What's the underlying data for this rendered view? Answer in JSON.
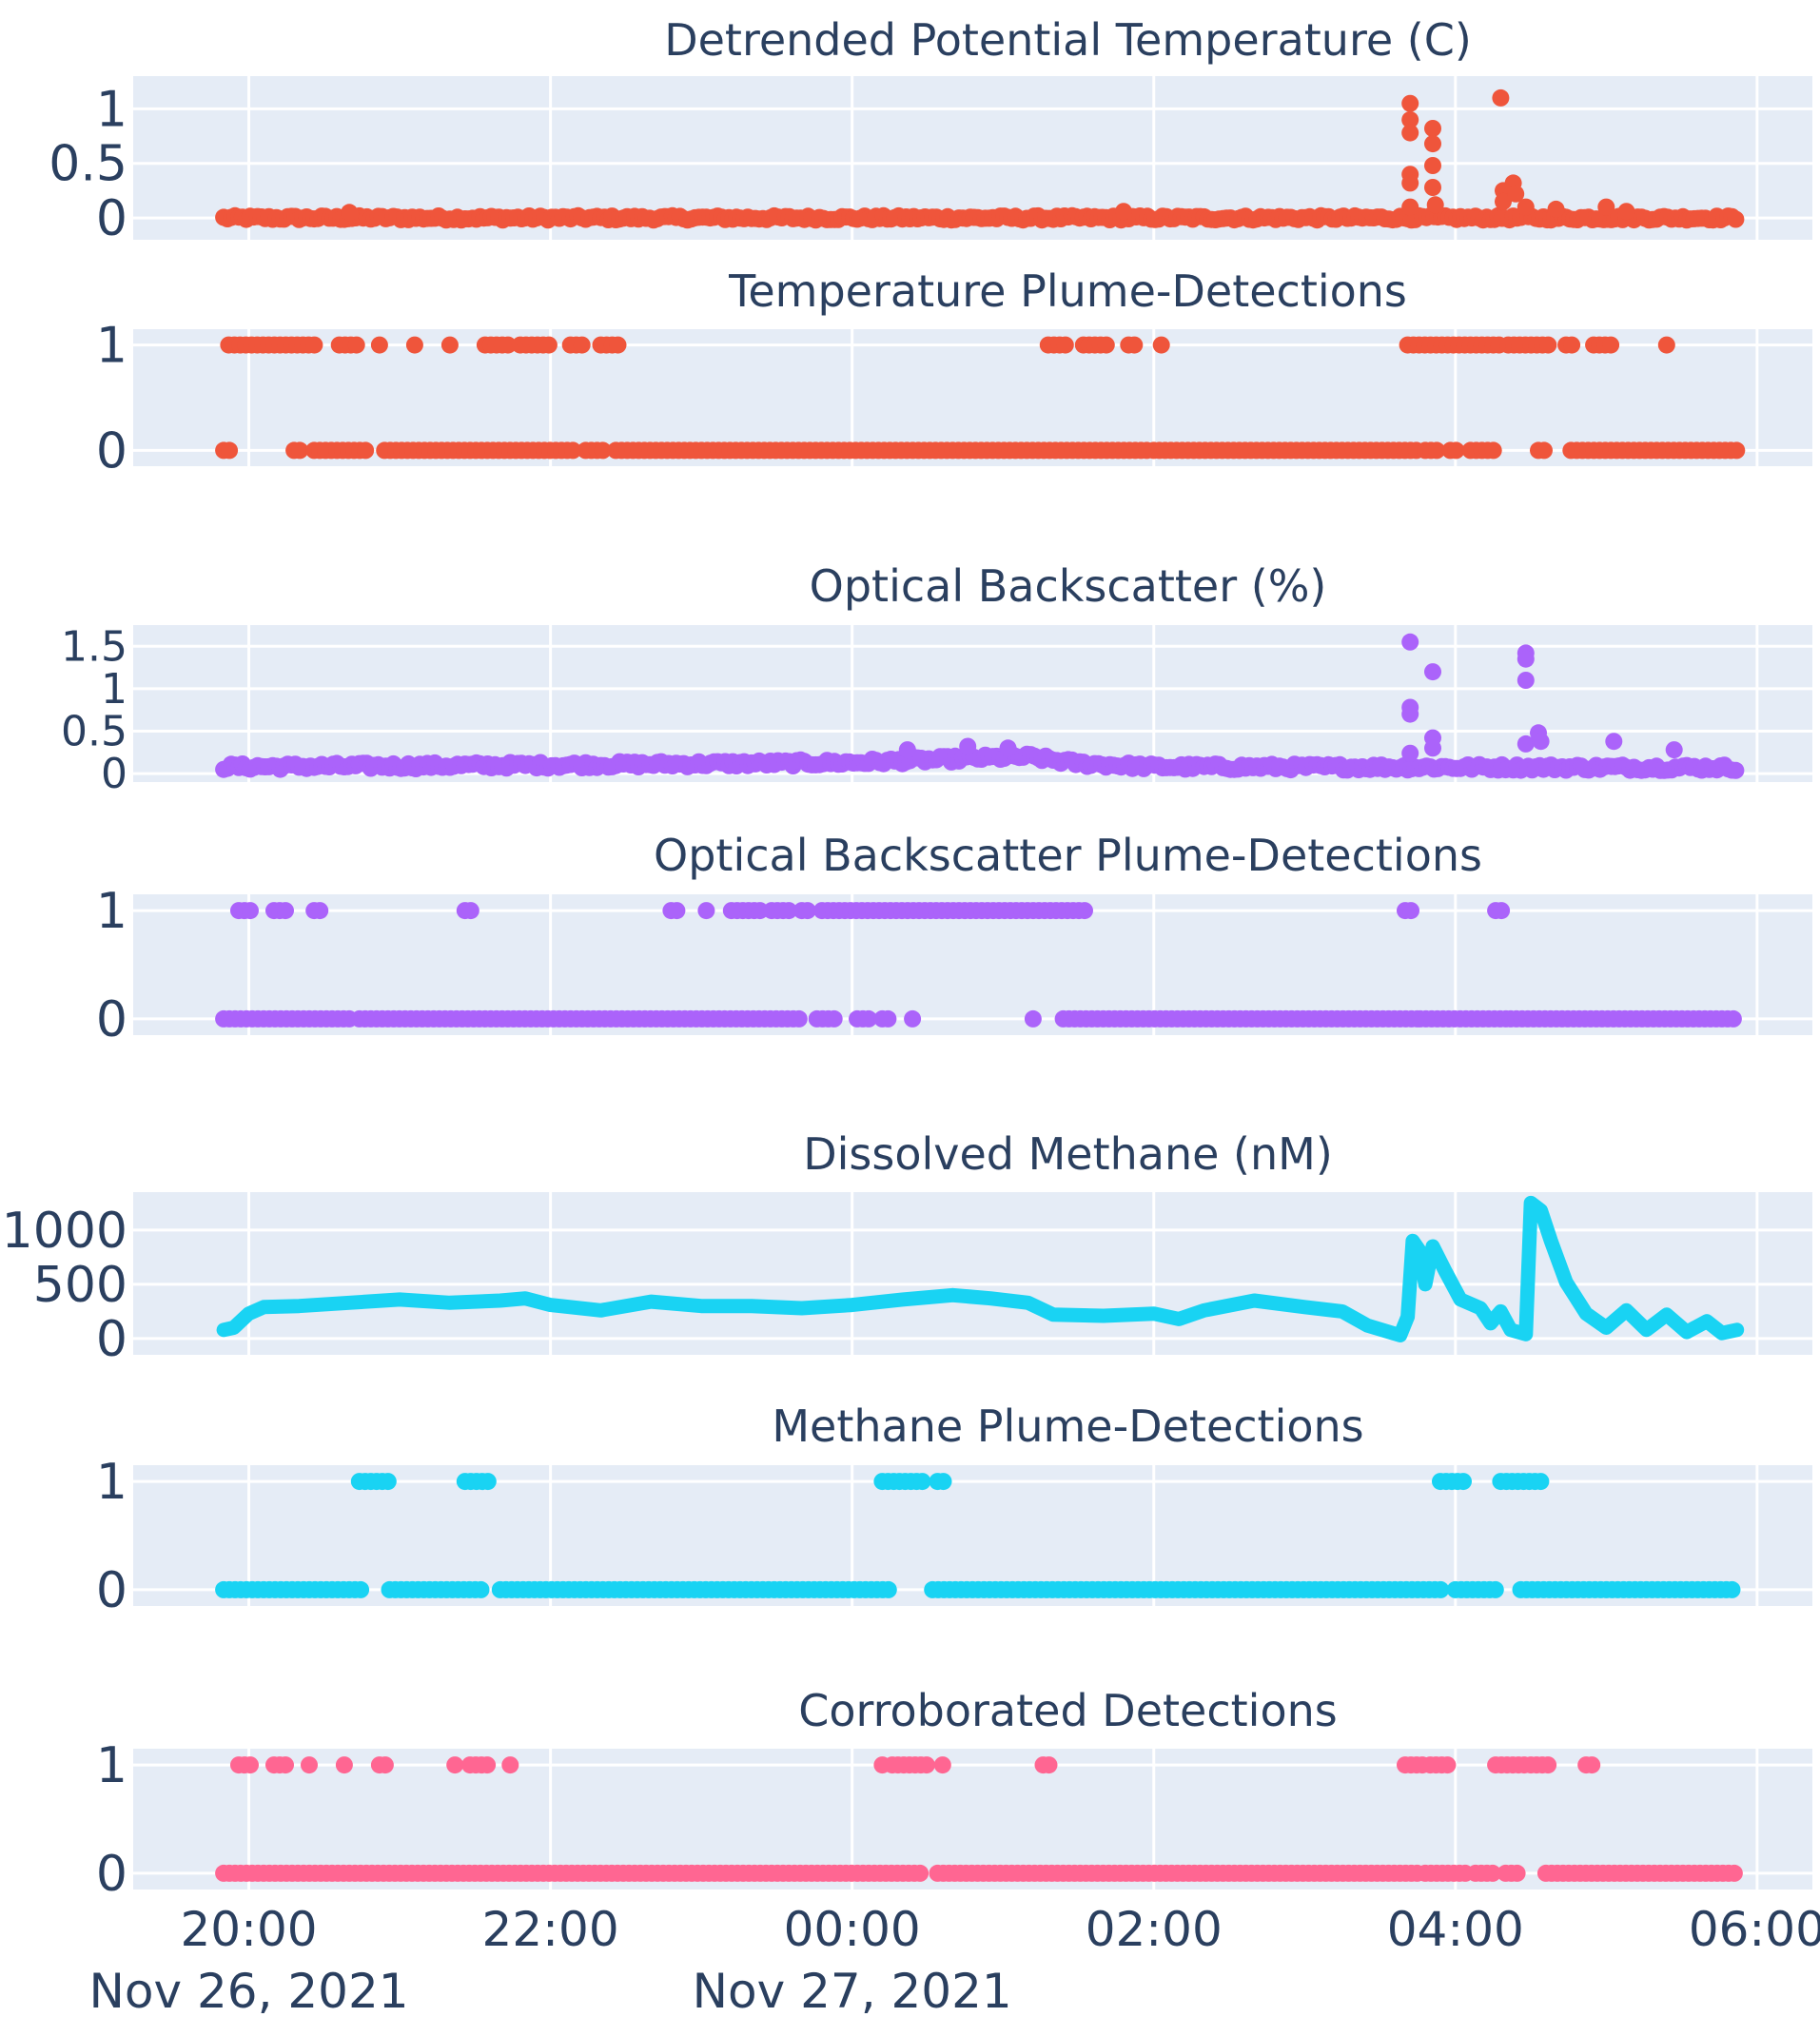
{
  "chart_data": [
    {
      "type": "scatter",
      "title": "Detrended Potential Temperature (C)",
      "color": "#ef553b",
      "ylim": [
        -0.2,
        1.3
      ],
      "yticks": [
        {
          "v": 1,
          "label": "1"
        },
        {
          "v": 0.5,
          "label": "0.5"
        },
        {
          "v": 0,
          "label": "0"
        }
      ],
      "baseline": {
        "start": "19:50",
        "end": "05:52",
        "noise": 0.02
      },
      "spikes": [
        {
          "t": "03:42",
          "y": 1.05
        },
        {
          "t": "03:42",
          "y": 0.9
        },
        {
          "t": "03:42",
          "y": 0.78
        },
        {
          "t": "03:42",
          "y": 0.4
        },
        {
          "t": "03:42",
          "y": 0.32
        },
        {
          "t": "03:42",
          "y": 0.1
        },
        {
          "t": "03:51",
          "y": 0.82
        },
        {
          "t": "03:51",
          "y": 0.68
        },
        {
          "t": "03:51",
          "y": 0.48
        },
        {
          "t": "03:51",
          "y": 0.28
        },
        {
          "t": "03:52",
          "y": 0.12
        },
        {
          "t": "04:18",
          "y": 1.1
        },
        {
          "t": "04:19",
          "y": 0.25
        },
        {
          "t": "04:19",
          "y": 0.15
        },
        {
          "t": "04:23",
          "y": 0.32
        },
        {
          "t": "04:24",
          "y": 0.22
        },
        {
          "t": "04:28",
          "y": 0.1
        },
        {
          "t": "04:40",
          "y": 0.08
        },
        {
          "t": "05:00",
          "y": 0.1
        },
        {
          "t": "05:08",
          "y": 0.06
        },
        {
          "t": "01:48",
          "y": 0.06
        },
        {
          "t": "20:40",
          "y": 0.05
        }
      ]
    },
    {
      "type": "scatter",
      "title": "Temperature Plume-Detections",
      "color": "#ef553b",
      "ylim": [
        -0.15,
        1.15
      ],
      "yticks": [
        {
          "v": 1,
          "label": "1"
        },
        {
          "v": 0,
          "label": "0"
        }
      ],
      "ones": [
        [
          "19:52",
          "20:28"
        ],
        [
          "20:36",
          "20:44"
        ],
        [
          "20:52",
          "20:54"
        ],
        [
          "21:06",
          "21:08"
        ],
        [
          "21:20",
          "21:22"
        ],
        [
          "21:34",
          "21:44"
        ],
        [
          "21:48",
          "22:00"
        ],
        [
          "22:08",
          "22:14"
        ],
        [
          "22:20",
          "22:28"
        ],
        [
          "01:18",
          "01:26"
        ],
        [
          "01:32",
          "01:42"
        ],
        [
          "01:50",
          "01:54"
        ],
        [
          "02:03",
          "02:03"
        ],
        [
          "03:41",
          "04:18"
        ],
        [
          "04:21",
          "04:38"
        ],
        [
          "04:44",
          "04:48"
        ],
        [
          "04:55",
          "05:02"
        ],
        [
          "05:24",
          "05:24"
        ]
      ],
      "zeros": [
        [
          "19:50",
          "19:54"
        ],
        [
          "20:18",
          "20:22"
        ],
        [
          "20:26",
          "20:48"
        ],
        [
          "20:54",
          "22:10"
        ],
        [
          "22:14",
          "22:22"
        ],
        [
          "22:26",
          "01:58"
        ],
        [
          "02:00",
          "03:46"
        ],
        [
          "03:48",
          "03:54"
        ],
        [
          "03:58",
          "04:02"
        ],
        [
          "04:06",
          "04:16"
        ],
        [
          "04:33",
          "04:36"
        ],
        [
          "04:46",
          "05:52"
        ]
      ]
    },
    {
      "type": "scatter",
      "title": "Optical Backscatter (%)",
      "color": "#ab63fa",
      "ylim": [
        -0.1,
        1.75
      ],
      "yticks": [
        {
          "v": 1.5,
          "label": "1.5"
        },
        {
          "v": 1,
          "label": "1"
        },
        {
          "v": 0.5,
          "label": "0.5"
        },
        {
          "v": 0,
          "label": "0"
        }
      ],
      "baseline_profile": [
        {
          "t": "19:50",
          "y": 0.08
        },
        {
          "t": "22:00",
          "y": 0.1
        },
        {
          "t": "00:00",
          "y": 0.13
        },
        {
          "t": "00:48",
          "y": 0.18
        },
        {
          "t": "01:10",
          "y": 0.2
        },
        {
          "t": "01:30",
          "y": 0.12
        },
        {
          "t": "02:00",
          "y": 0.08
        },
        {
          "t": "05:52",
          "y": 0.07
        }
      ],
      "spikes": [
        {
          "t": "03:42",
          "y": 1.55
        },
        {
          "t": "03:42",
          "y": 0.78
        },
        {
          "t": "03:42",
          "y": 0.7
        },
        {
          "t": "03:42",
          "y": 0.24
        },
        {
          "t": "03:51",
          "y": 1.2
        },
        {
          "t": "03:51",
          "y": 0.42
        },
        {
          "t": "03:51",
          "y": 0.3
        },
        {
          "t": "04:28",
          "y": 1.42
        },
        {
          "t": "04:28",
          "y": 1.35
        },
        {
          "t": "04:28",
          "y": 1.1
        },
        {
          "t": "04:28",
          "y": 0.35
        },
        {
          "t": "04:33",
          "y": 0.48
        },
        {
          "t": "04:34",
          "y": 0.38
        },
        {
          "t": "05:03",
          "y": 0.38
        },
        {
          "t": "05:27",
          "y": 0.28
        },
        {
          "t": "00:22",
          "y": 0.28
        },
        {
          "t": "00:46",
          "y": 0.32
        },
        {
          "t": "01:02",
          "y": 0.3
        }
      ]
    },
    {
      "type": "scatter",
      "title": "Optical Backscatter  Plume-Detections",
      "color": "#ab63fa",
      "ylim": [
        -0.15,
        1.15
      ],
      "yticks": [
        {
          "v": 1,
          "label": "1"
        },
        {
          "v": 0,
          "label": "0"
        }
      ],
      "ones": [
        [
          "19:56",
          "20:02"
        ],
        [
          "20:10",
          "20:16"
        ],
        [
          "20:26",
          "20:30"
        ],
        [
          "21:26",
          "21:30"
        ],
        [
          "22:48",
          "22:52"
        ],
        [
          "23:02",
          "23:04"
        ],
        [
          "23:12",
          "23:24"
        ],
        [
          "23:28",
          "23:36"
        ],
        [
          "23:40",
          "23:44"
        ],
        [
          "23:48",
          "01:34"
        ],
        [
          "03:40",
          "03:44"
        ],
        [
          "04:16",
          "04:20"
        ]
      ],
      "zeros": [
        [
          "19:50",
          "20:40"
        ],
        [
          "20:44",
          "23:40"
        ],
        [
          "23:46",
          "23:54"
        ],
        [
          "00:02",
          "00:08"
        ],
        [
          "00:12",
          "00:16"
        ],
        [
          "00:24",
          "00:26"
        ],
        [
          "01:12",
          "01:14"
        ],
        [
          "01:24",
          "03:46"
        ],
        [
          "03:46",
          "04:22"
        ],
        [
          "04:22",
          "05:52"
        ]
      ]
    },
    {
      "type": "line",
      "title": "Dissolved Methane (nM)",
      "color": "#19d3f3",
      "ylim": [
        -150,
        1350
      ],
      "yticks": [
        {
          "v": 1000,
          "label": "1000"
        },
        {
          "v": 500,
          "label": "500"
        },
        {
          "v": 0,
          "label": "0"
        }
      ],
      "points": [
        {
          "t": "19:50",
          "y": 80
        },
        {
          "t": "19:54",
          "y": 100
        },
        {
          "t": "20:00",
          "y": 230
        },
        {
          "t": "20:06",
          "y": 290
        },
        {
          "t": "20:20",
          "y": 300
        },
        {
          "t": "20:40",
          "y": 330
        },
        {
          "t": "21:00",
          "y": 360
        },
        {
          "t": "21:20",
          "y": 330
        },
        {
          "t": "21:40",
          "y": 350
        },
        {
          "t": "21:50",
          "y": 370
        },
        {
          "t": "22:00",
          "y": 310
        },
        {
          "t": "22:20",
          "y": 260
        },
        {
          "t": "22:40",
          "y": 340
        },
        {
          "t": "23:00",
          "y": 300
        },
        {
          "t": "23:20",
          "y": 300
        },
        {
          "t": "23:40",
          "y": 280
        },
        {
          "t": "00:00",
          "y": 310
        },
        {
          "t": "00:20",
          "y": 360
        },
        {
          "t": "00:40",
          "y": 400
        },
        {
          "t": "00:55",
          "y": 370
        },
        {
          "t": "01:10",
          "y": 330
        },
        {
          "t": "01:20",
          "y": 220
        },
        {
          "t": "01:40",
          "y": 210
        },
        {
          "t": "02:00",
          "y": 230
        },
        {
          "t": "02:10",
          "y": 180
        },
        {
          "t": "02:20",
          "y": 260
        },
        {
          "t": "02:40",
          "y": 350
        },
        {
          "t": "03:00",
          "y": 290
        },
        {
          "t": "03:15",
          "y": 250
        },
        {
          "t": "03:25",
          "y": 120
        },
        {
          "t": "03:38",
          "y": 30
        },
        {
          "t": "03:41",
          "y": 200
        },
        {
          "t": "03:43",
          "y": 900
        },
        {
          "t": "03:46",
          "y": 800
        },
        {
          "t": "03:48",
          "y": 500
        },
        {
          "t": "03:51",
          "y": 850
        },
        {
          "t": "03:56",
          "y": 620
        },
        {
          "t": "04:02",
          "y": 360
        },
        {
          "t": "04:10",
          "y": 280
        },
        {
          "t": "04:14",
          "y": 140
        },
        {
          "t": "04:18",
          "y": 250
        },
        {
          "t": "04:22",
          "y": 80
        },
        {
          "t": "04:28",
          "y": 40
        },
        {
          "t": "04:30",
          "y": 1250
        },
        {
          "t": "04:34",
          "y": 1180
        },
        {
          "t": "04:38",
          "y": 900
        },
        {
          "t": "04:44",
          "y": 520
        },
        {
          "t": "04:52",
          "y": 230
        },
        {
          "t": "05:00",
          "y": 100
        },
        {
          "t": "05:08",
          "y": 260
        },
        {
          "t": "05:16",
          "y": 80
        },
        {
          "t": "05:24",
          "y": 220
        },
        {
          "t": "05:32",
          "y": 60
        },
        {
          "t": "05:40",
          "y": 160
        },
        {
          "t": "05:46",
          "y": 50
        },
        {
          "t": "05:52",
          "y": 80
        }
      ]
    },
    {
      "type": "scatter",
      "title": "Methane Plume-Detections",
      "color": "#19d3f3",
      "ylim": [
        -0.15,
        1.15
      ],
      "yticks": [
        {
          "v": 1,
          "label": "1"
        },
        {
          "v": 0,
          "label": "0"
        }
      ],
      "ones": [
        [
          "20:44",
          "20:56"
        ],
        [
          "21:26",
          "21:36"
        ],
        [
          "00:12",
          "00:28"
        ],
        [
          "00:34",
          "00:38"
        ],
        [
          "03:54",
          "04:04"
        ],
        [
          "04:18",
          "04:36"
        ]
      ],
      "zeros": [
        [
          "19:50",
          "20:46"
        ],
        [
          "20:56",
          "21:34"
        ],
        [
          "21:40",
          "00:16"
        ],
        [
          "00:32",
          "03:56"
        ],
        [
          "04:00",
          "04:16"
        ],
        [
          "04:26",
          "05:52"
        ]
      ]
    },
    {
      "type": "scatter",
      "title": "Corroborated Detections",
      "color": "#ff6692",
      "ylim": [
        -0.15,
        1.15
      ],
      "yticks": [
        {
          "v": 1,
          "label": "1"
        },
        {
          "v": 0,
          "label": "0"
        }
      ],
      "ones": [
        [
          "19:56",
          "20:02"
        ],
        [
          "20:10",
          "20:16"
        ],
        [
          "20:24",
          "20:26"
        ],
        [
          "20:38",
          "20:40"
        ],
        [
          "20:52",
          "20:56"
        ],
        [
          "21:22",
          "21:24"
        ],
        [
          "21:28",
          "21:36"
        ],
        [
          "21:44",
          "21:46"
        ],
        [
          "00:12",
          "00:14"
        ],
        [
          "00:16",
          "00:30"
        ],
        [
          "00:36",
          "00:38"
        ],
        [
          "01:16",
          "01:20"
        ],
        [
          "03:40",
          "03:48"
        ],
        [
          "03:50",
          "03:58"
        ],
        [
          "04:16",
          "04:28"
        ],
        [
          "04:30",
          "04:38"
        ],
        [
          "04:52",
          "04:56"
        ]
      ],
      "zeros": [
        [
          "19:50",
          "00:28"
        ],
        [
          "00:34",
          "03:46"
        ],
        [
          "03:48",
          "04:06"
        ],
        [
          "04:08",
          "04:16"
        ],
        [
          "04:20",
          "04:26"
        ],
        [
          "04:36",
          "05:52"
        ]
      ]
    }
  ],
  "x_axis": {
    "ticks": [
      {
        "t": "20:00",
        "label": "20:00",
        "date_label": "Nov 26, 2021"
      },
      {
        "t": "22:00",
        "label": "22:00",
        "date_label": ""
      },
      {
        "t": "00:00",
        "label": "00:00",
        "date_label": "Nov 27, 2021"
      },
      {
        "t": "02:00",
        "label": "02:00",
        "date_label": ""
      },
      {
        "t": "04:00",
        "label": "04:00",
        "date_label": ""
      },
      {
        "t": "06:00",
        "label": "06:00",
        "date_label": ""
      }
    ],
    "range": [
      "19:14",
      "06:22"
    ]
  },
  "gridlines": true,
  "legend": "none"
}
